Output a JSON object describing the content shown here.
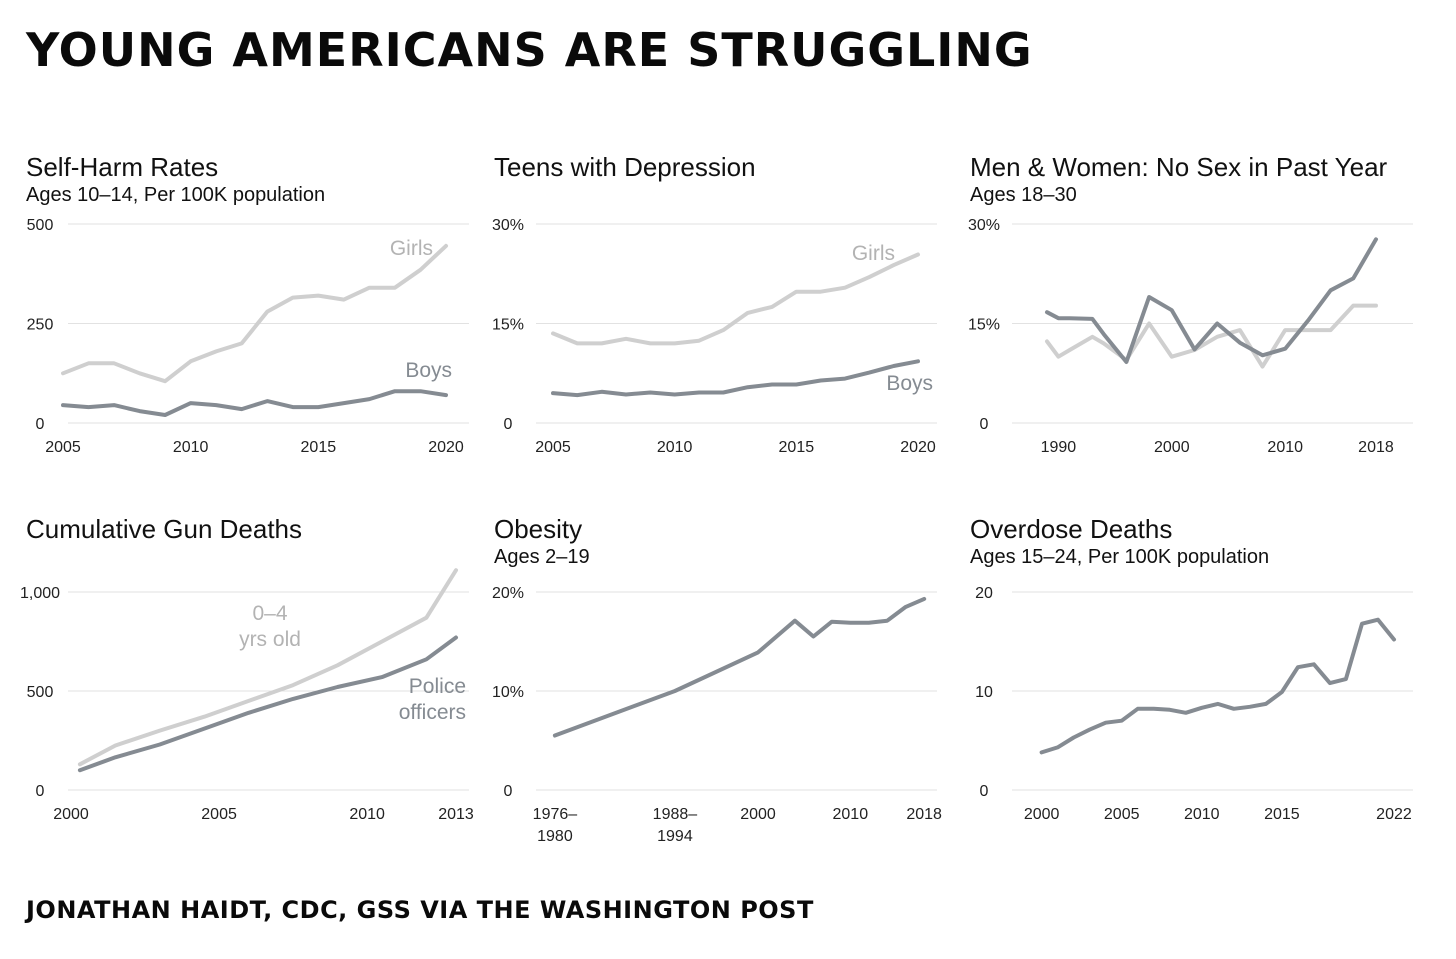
{
  "header": {
    "title": "YOUNG AMERICANS ARE STRUGGLING"
  },
  "footer": {
    "source": "JONATHAN HAIDT, CDC, GSS VIA THE WASHINGTON POST"
  },
  "colors": {
    "light": "#cfcfcf",
    "dark": "#858b92",
    "grid": "#e2e2e2",
    "axis_text": "#222222"
  },
  "chart_data": [
    {
      "type": "line",
      "title": "Self-Harm Rates",
      "subtitle": "Ages 10–14, Per 100K population",
      "ylim": [
        0,
        500
      ],
      "yticks": [
        0,
        250,
        500
      ],
      "ytick_labels": [
        "0",
        "250",
        "500"
      ],
      "xlim": [
        2005,
        2020
      ],
      "xticks": [
        2005,
        2010,
        2015,
        2020
      ],
      "xtick_labels": [
        "2005",
        "2010",
        "2015",
        "2020"
      ],
      "grid": true,
      "series": [
        {
          "name": "Girls",
          "color": "light",
          "x": [
            2005,
            2006,
            2007,
            2008,
            2009,
            2010,
            2011,
            2012,
            2013,
            2014,
            2015,
            2016,
            2017,
            2018,
            2019,
            2020
          ],
          "y": [
            125,
            150,
            150,
            125,
            105,
            155,
            180,
            200,
            280,
            315,
            320,
            310,
            340,
            340,
            385,
            445
          ]
        },
        {
          "name": "Boys",
          "color": "dark",
          "x": [
            2005,
            2006,
            2007,
            2008,
            2009,
            2010,
            2011,
            2012,
            2013,
            2014,
            2015,
            2016,
            2017,
            2018,
            2019,
            2020
          ],
          "y": [
            45,
            40,
            45,
            30,
            20,
            50,
            45,
            35,
            55,
            40,
            40,
            50,
            60,
            80,
            80,
            70
          ]
        }
      ]
    },
    {
      "type": "line",
      "title": "Teens with Depression",
      "subtitle": "",
      "ylim": [
        0,
        30
      ],
      "yticks": [
        0,
        15,
        30
      ],
      "ytick_labels": [
        "0",
        "15%",
        "30%"
      ],
      "xlim": [
        2005,
        2020
      ],
      "xticks": [
        2005,
        2010,
        2015,
        2020
      ],
      "xtick_labels": [
        "2005",
        "2010",
        "2015",
        "2020"
      ],
      "grid": true,
      "series": [
        {
          "name": "Girls",
          "color": "light",
          "x": [
            2005,
            2006,
            2007,
            2008,
            2009,
            2010,
            2011,
            2012,
            2013,
            2014,
            2015,
            2016,
            2017,
            2018,
            2019,
            2020
          ],
          "y": [
            13.5,
            12,
            12,
            12.7,
            12,
            12,
            12.4,
            14,
            16.6,
            17.5,
            19.8,
            19.8,
            20.4,
            22,
            23.8,
            25.4
          ]
        },
        {
          "name": "Boys",
          "color": "dark",
          "x": [
            2005,
            2006,
            2007,
            2008,
            2009,
            2010,
            2011,
            2012,
            2013,
            2014,
            2015,
            2016,
            2017,
            2018,
            2019,
            2020
          ],
          "y": [
            4.5,
            4.2,
            4.7,
            4.3,
            4.6,
            4.3,
            4.6,
            4.6,
            5.4,
            5.8,
            5.8,
            6.4,
            6.7,
            7.6,
            8.6,
            9.3
          ]
        }
      ]
    },
    {
      "type": "line",
      "title": "Men & Women: No Sex in Past Year",
      "subtitle": "Ages 18–30",
      "ylim": [
        0,
        30
      ],
      "yticks": [
        0,
        15,
        30
      ],
      "ytick_labels": [
        "0",
        "15%",
        "30%"
      ],
      "xlim": [
        1986,
        2021
      ],
      "xticks": [
        1990,
        2000,
        2010,
        2018
      ],
      "xtick_labels": [
        "1990",
        "2000",
        "2010",
        "2018"
      ],
      "grid": true,
      "series": [
        {
          "name": "",
          "color": "light",
          "x": [
            1989,
            1990,
            1991,
            1993,
            1994,
            1996,
            1998,
            2000,
            2002,
            2004,
            2006,
            2008,
            2010,
            2012,
            2014,
            2016,
            2018
          ],
          "y": [
            12.3,
            10,
            11,
            13,
            12,
            9.5,
            15,
            10,
            11,
            13,
            14,
            8.5,
            14,
            14,
            14,
            17.7,
            17.7
          ]
        },
        {
          "name": "",
          "color": "dark",
          "x": [
            1989,
            1990,
            1991,
            1993,
            1994,
            1996,
            1998,
            2000,
            2002,
            2004,
            2006,
            2008,
            2010,
            2012,
            2014,
            2016,
            2018
          ],
          "y": [
            16.7,
            15.8,
            15.8,
            15.7,
            13.4,
            9.2,
            19,
            17,
            11.1,
            15,
            12.1,
            10.2,
            11.2,
            15.4,
            20,
            21.8,
            27.7
          ]
        }
      ]
    },
    {
      "type": "line",
      "title": "Cumulative Gun Deaths",
      "subtitle": "",
      "ylim": [
        0,
        1000
      ],
      "yticks": [
        0,
        500,
        1000
      ],
      "ytick_labels": [
        "0",
        "500",
        "1,000"
      ],
      "xlim": [
        2000,
        2013
      ],
      "xticks": [
        2000,
        2005,
        2010,
        2013
      ],
      "xtick_labels": [
        "2000",
        "2005",
        "2010",
        "2013"
      ],
      "grid": true,
      "series": [
        {
          "name": "0–4 yrs old",
          "color": "light",
          "x": [
            2000.3,
            2001.5,
            2003,
            2004.5,
            2006,
            2007.5,
            2009,
            2010.5,
            2012,
            2013
          ],
          "y": [
            130,
            225,
            300,
            370,
            450,
            530,
            630,
            750,
            870,
            1110
          ]
        },
        {
          "name": "Police officers",
          "color": "dark",
          "x": [
            2000.3,
            2001.5,
            2003,
            2004.5,
            2006,
            2007.5,
            2009,
            2010.5,
            2012,
            2013
          ],
          "y": [
            100,
            165,
            230,
            310,
            390,
            460,
            520,
            570,
            660,
            770
          ]
        }
      ]
    },
    {
      "type": "line",
      "title": "Obesity",
      "subtitle": "Ages 2–19",
      "ylim": [
        0,
        20
      ],
      "yticks": [
        0,
        10,
        20
      ],
      "ytick_labels": [
        "0",
        "10%",
        "20%"
      ],
      "xlim": [
        1974,
        2019.5
      ],
      "xticks": [
        1978,
        1991,
        2000,
        2010,
        2018
      ],
      "xtick_labels": [
        "1976–\n1980",
        "1988–\n1994",
        "2000",
        "2010",
        "2018"
      ],
      "grid": true,
      "series": [
        {
          "name": "",
          "color": "dark",
          "x": [
            1978,
            1991,
            2000,
            2004,
            2006,
            2008,
            2010,
            2012,
            2014,
            2016,
            2018
          ],
          "y": [
            5.5,
            10.0,
            13.9,
            17.1,
            15.5,
            17.0,
            16.9,
            16.9,
            17.1,
            18.5,
            19.3
          ]
        }
      ]
    },
    {
      "type": "line",
      "title": "Overdose Deaths",
      "subtitle": "Ages 15–24, Per 100K population",
      "ylim": [
        0,
        20
      ],
      "yticks": [
        0,
        10,
        20
      ],
      "ytick_labels": [
        "0",
        "10",
        "20"
      ],
      "xlim": [
        1997.9,
        2023
      ],
      "xticks": [
        2000,
        2005,
        2010,
        2015,
        2022
      ],
      "xtick_labels": [
        "2000",
        "2005",
        "2010",
        "2015",
        "2022"
      ],
      "grid": true,
      "series": [
        {
          "name": "",
          "color": "dark",
          "x": [
            2000,
            2001,
            2002,
            2003,
            2004,
            2005,
            2006,
            2007,
            2008,
            2009,
            2010,
            2011,
            2012,
            2013,
            2014,
            2015,
            2016,
            2017,
            2018,
            2019,
            2020,
            2021,
            2022
          ],
          "y": [
            3.8,
            4.3,
            5.3,
            6.1,
            6.8,
            7.0,
            8.2,
            8.2,
            8.1,
            7.8,
            8.3,
            8.7,
            8.2,
            8.4,
            8.7,
            9.9,
            12.4,
            12.7,
            10.8,
            11.2,
            16.8,
            17.2,
            15.2
          ]
        }
      ]
    }
  ]
}
